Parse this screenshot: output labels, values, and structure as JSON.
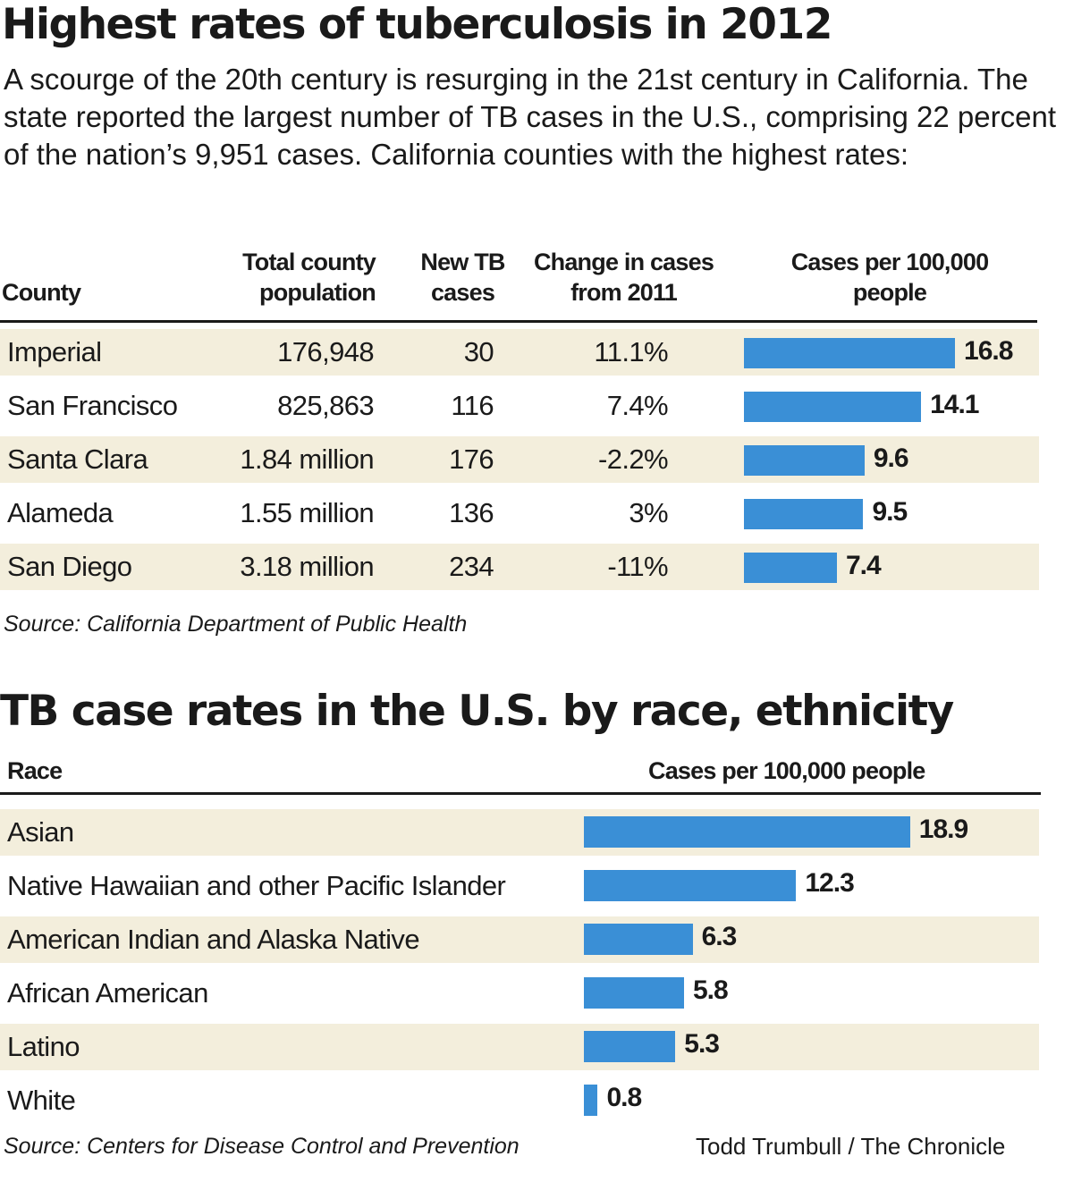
{
  "title1": "Highest rates of tuberculosis in 2012",
  "intro": "A scourge of the 20th century is resurging in the 21st century in California. The state reported the largest number of TB cases in the U.S., comprising 22 percent of the nation’s 9,951 cases. California counties with the highest rates:",
  "table_headers": {
    "county": "County",
    "population": "Total county population",
    "new_cases": "New TB cases",
    "change": "Change in cases from 2011",
    "rate": "Cases per 100,000 people"
  },
  "source1": "Source: California Department of Public Health",
  "title2": "TB case rates in the U.S. by race, ethnicity",
  "race_headers": {
    "race": "Race",
    "rate": "Cases per 100,000 people"
  },
  "source2": "Source: Centers for Disease Control and Prevention",
  "credit": "Todd Trumbull / The Chronicle",
  "colors": {
    "bar": "#3a8fd6",
    "stripe": "#f3eedc"
  },
  "chart_data": [
    {
      "type": "table",
      "title": "Highest rates of tuberculosis in 2012",
      "rows": [
        {
          "county": "Imperial",
          "population": "176,948",
          "new_cases": "30",
          "change": "11.1%",
          "rate": 16.8
        },
        {
          "county": "San Francisco",
          "population": "825,863",
          "new_cases": "116",
          "change": "7.4%",
          "rate": 14.1
        },
        {
          "county": "Santa Clara",
          "population": "1.84 million",
          "new_cases": "176",
          "change": "-2.2%",
          "rate": 9.6
        },
        {
          "county": "Alameda",
          "population": "1.55 million",
          "new_cases": "136",
          "change": "3%",
          "rate": 9.5
        },
        {
          "county": "San Diego",
          "population": "3.18 million",
          "new_cases": "234",
          "change": "-11%",
          "rate": 7.4
        }
      ]
    },
    {
      "type": "bar",
      "title": "TB case rates in the U.S. by race, ethnicity",
      "categories": [
        "Asian",
        "Native Hawaiian and other Pacific Islander",
        "American Indian and Alaska Native",
        "African American",
        "Latino",
        "White"
      ],
      "values": [
        18.9,
        12.3,
        6.3,
        5.8,
        5.3,
        0.8
      ]
    }
  ]
}
